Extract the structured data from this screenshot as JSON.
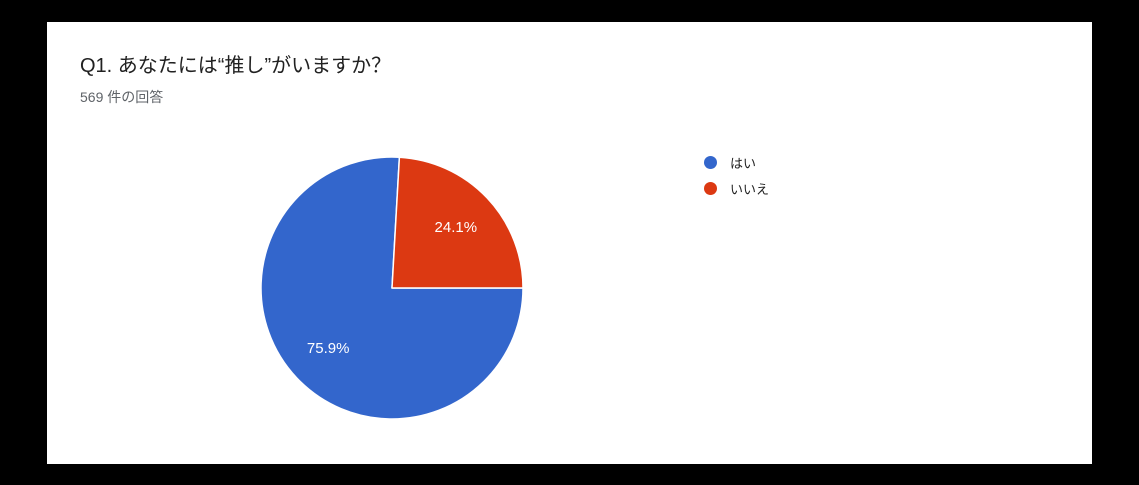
{
  "page": {
    "frame_color": "#000000",
    "card_color": "#ffffff"
  },
  "card": {
    "title": "Q1. あなたには“推し”がいますか？",
    "response_count": "569 件の回答"
  },
  "chart_data": {
    "type": "pie",
    "title": "Q1. あなたには“推し”がいますか？",
    "responses_total": 569,
    "categories": [
      "はい",
      "いいえ"
    ],
    "values": [
      75.9,
      24.1
    ],
    "unit": "%",
    "slice_labels": [
      "75.9%",
      "24.1%"
    ],
    "colors": [
      "#3366CC",
      "#DC3912"
    ],
    "slice_label_color": "#ffffff",
    "slice_border_color": "#ffffff",
    "legend_position": "right",
    "start_angle_deg": 90,
    "direction": "clockwise"
  }
}
